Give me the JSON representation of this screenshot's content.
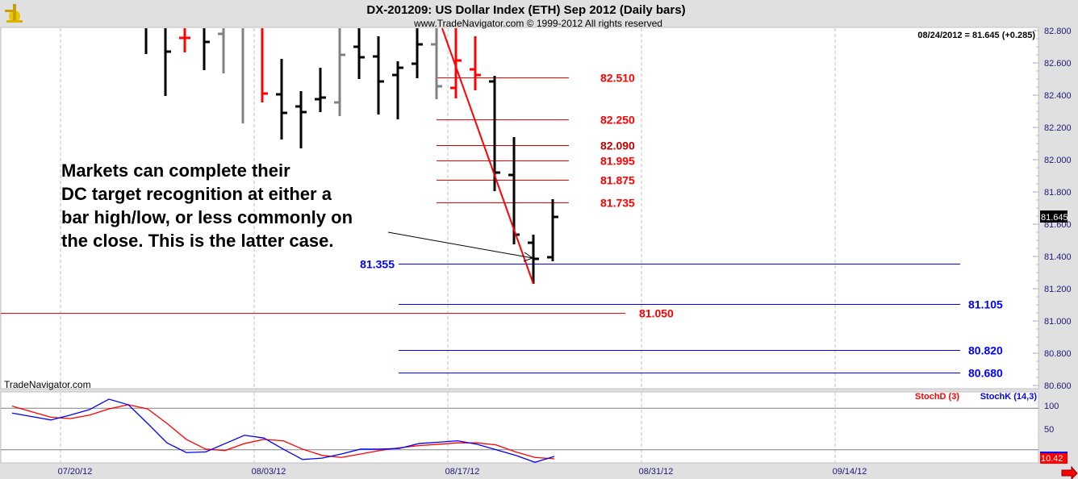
{
  "header": {
    "title": "DX-201209:  US Dollar Index (ETH) Sep 2012  (Daily bars)",
    "copyright": "www.TradeNavigator.com © 1999-2012 All rights reserved",
    "last_quote": "08/24/2012 = 81.645 (+0.285)",
    "watermark": "TradeNavigator.com",
    "logo": "TradeNavigator"
  },
  "annotation": {
    "lines": [
      "Markets can complete their",
      "DC target recognition at either a",
      "bar high/low, or less commonly on",
      "the close. This is the latter case."
    ]
  },
  "colors": {
    "up": "#000000",
    "gray": "#808080",
    "red": "#ff0000",
    "blue": "#0000ff",
    "stochD": "#ff0000",
    "stochK": "#0000ff"
  },
  "chart_data": [
    {
      "type": "ohlc",
      "title": "DX-201209:  US Dollar Index (ETH) Sep 2012  (Daily bars)",
      "ylim": [
        80.6,
        82.8
      ],
      "y_ticks": [
        "82.800",
        "82.600",
        "82.400",
        "82.200",
        "82.000",
        "81.800",
        "81.600",
        "81.400",
        "81.200",
        "81.000",
        "80.800",
        "80.600"
      ],
      "x_ticks": [
        "07/20/12",
        "08/03/12",
        "08/17/12",
        "08/31/12",
        "09/14/12"
      ],
      "last_price_label": "81.645",
      "bars": [
        {
          "date": "07/26",
          "o": 82.9,
          "h": 83.0,
          "l": 82.655,
          "c": 82.85,
          "color": "black"
        },
        {
          "date": "07/27",
          "o": 82.9,
          "h": 83.0,
          "l": 82.395,
          "c": 82.67,
          "color": "black"
        },
        {
          "date": "07/30",
          "o": 82.755,
          "h": 83.0,
          "l": 82.665,
          "c": 82.755,
          "color": "red"
        },
        {
          "date": "07/31",
          "o": 82.9,
          "h": 83.0,
          "l": 82.555,
          "c": 82.73,
          "color": "black"
        },
        {
          "date": "08/01",
          "o": 82.78,
          "h": 83.0,
          "l": 82.535,
          "c": 82.85,
          "color": "gray"
        },
        {
          "date": "08/02",
          "o": 82.9,
          "h": 83.0,
          "l": 82.225,
          "c": 82.85,
          "color": "gray"
        },
        {
          "date": "08/03",
          "o": 82.9,
          "h": 83.0,
          "l": 82.355,
          "c": 82.41,
          "color": "red"
        },
        {
          "date": "08/06",
          "o": 82.405,
          "h": 82.625,
          "l": 82.125,
          "c": 82.29,
          "color": "black"
        },
        {
          "date": "08/07",
          "o": 82.33,
          "h": 82.425,
          "l": 82.07,
          "c": 82.295,
          "color": "black"
        },
        {
          "date": "08/08",
          "o": 82.375,
          "h": 82.57,
          "l": 82.295,
          "c": 82.385,
          "color": "black"
        },
        {
          "date": "08/09",
          "o": 82.355,
          "h": 83.0,
          "l": 82.27,
          "c": 82.65,
          "color": "gray"
        },
        {
          "date": "08/10",
          "o": 82.7,
          "h": 83.0,
          "l": 82.5,
          "c": 82.635,
          "color": "black"
        },
        {
          "date": "08/13",
          "o": 82.64,
          "h": 82.765,
          "l": 82.28,
          "c": 82.485,
          "color": "black"
        },
        {
          "date": "08/14",
          "o": 82.525,
          "h": 82.61,
          "l": 82.25,
          "c": 82.57,
          "color": "black"
        },
        {
          "date": "08/15",
          "o": 82.595,
          "h": 82.815,
          "l": 82.505,
          "c": 82.715,
          "color": "black"
        },
        {
          "date": "08/16",
          "o": 82.715,
          "h": 83.0,
          "l": 82.375,
          "c": 82.455,
          "color": "gray"
        },
        {
          "date": "08/17",
          "o": 82.445,
          "h": 83.0,
          "l": 82.38,
          "c": 82.615,
          "color": "red"
        },
        {
          "date": "08/20",
          "o": 82.56,
          "h": 82.765,
          "l": 82.43,
          "c": 82.525,
          "color": "red"
        },
        {
          "date": "08/21",
          "o": 82.485,
          "h": 82.52,
          "l": 81.805,
          "c": 81.92,
          "color": "black"
        },
        {
          "date": "08/22",
          "o": 81.905,
          "h": 82.14,
          "l": 81.475,
          "c": 81.535,
          "color": "black"
        },
        {
          "date": "08/23",
          "o": 81.485,
          "h": 81.535,
          "l": 81.23,
          "c": 81.385,
          "color": "black"
        },
        {
          "date": "08/24",
          "o": 81.395,
          "h": 81.755,
          "l": 81.37,
          "c": 81.645,
          "color": "black"
        }
      ],
      "levels": [
        {
          "value": 82.51,
          "label": "82.510",
          "color": "#ff0000",
          "from": "08/16",
          "to": "08/24+1",
          "label_side": "right"
        },
        {
          "value": 82.25,
          "label": "82.250",
          "color": "#ff0000",
          "from": "08/16",
          "to": "08/24+1",
          "label_side": "right"
        },
        {
          "value": 82.09,
          "label": "82.090",
          "color": "#c00000",
          "from": "08/16",
          "to": "08/24+1",
          "label_side": "right"
        },
        {
          "value": 81.995,
          "label": "81.995",
          "color": "#ff0000",
          "from": "08/16",
          "to": "08/24+1",
          "label_side": "right"
        },
        {
          "value": 81.875,
          "label": "81.875",
          "color": "#ff0000",
          "from": "08/16",
          "to": "08/24+1",
          "label_side": "right"
        },
        {
          "value": 81.735,
          "label": "81.735",
          "color": "#ff0000",
          "from": "08/16",
          "to": "08/24+1",
          "label_side": "right"
        },
        {
          "value": 81.355,
          "label": "81.355",
          "color": "#0000ff",
          "label_side": "left"
        },
        {
          "value": 81.105,
          "label": "81.105",
          "color": "#0000ff",
          "label_side": "far-right"
        },
        {
          "value": 81.05,
          "label": "81.050",
          "color": "#ff0000",
          "label_side": "mid"
        },
        {
          "value": 80.82,
          "label": "80.820",
          "color": "#0000ff",
          "label_side": "far-right"
        },
        {
          "value": 80.68,
          "label": "80.680",
          "color": "#0000ff",
          "label_side": "far-right"
        }
      ],
      "trendline": {
        "from": {
          "date": "08/16",
          "value": 82.815
        },
        "to": {
          "date": "08/23",
          "value": 81.23
        },
        "color": "#ff0000"
      }
    },
    {
      "type": "line",
      "ylim": [
        0,
        100
      ],
      "y_ticks": [
        "100",
        "50"
      ],
      "reference_levels": [
        80,
        20
      ],
      "last_value_label": "10.42",
      "dates": [
        "07/17",
        "07/18",
        "07/19",
        "07/20",
        "07/23",
        "07/24",
        "07/25",
        "07/26",
        "07/27",
        "07/30",
        "07/31",
        "08/01",
        "08/02",
        "08/03",
        "08/06",
        "08/07",
        "08/08",
        "08/09",
        "08/10",
        "08/13",
        "08/14",
        "08/15",
        "08/16",
        "08/17",
        "08/20",
        "08/21",
        "08/22",
        "08/23",
        "08/24"
      ],
      "series": [
        {
          "name": "StochD (3)",
          "color": "#ff0000",
          "values": [
            83,
            75,
            67,
            65,
            70,
            79,
            85,
            79,
            58,
            35,
            21,
            19,
            29,
            35,
            33,
            21,
            12,
            9,
            14,
            19,
            23,
            26,
            28,
            30,
            30,
            27,
            17,
            9,
            7
          ]
        },
        {
          "name": "StochK (14,3)",
          "color": "#0000ff",
          "values": [
            73,
            68,
            63,
            70,
            78,
            93,
            85,
            58,
            30,
            16,
            17,
            29,
            41,
            37,
            21,
            6,
            8,
            14,
            21,
            21,
            22,
            29,
            31,
            33,
            28,
            20,
            12,
            2,
            10.42
          ]
        }
      ]
    }
  ]
}
